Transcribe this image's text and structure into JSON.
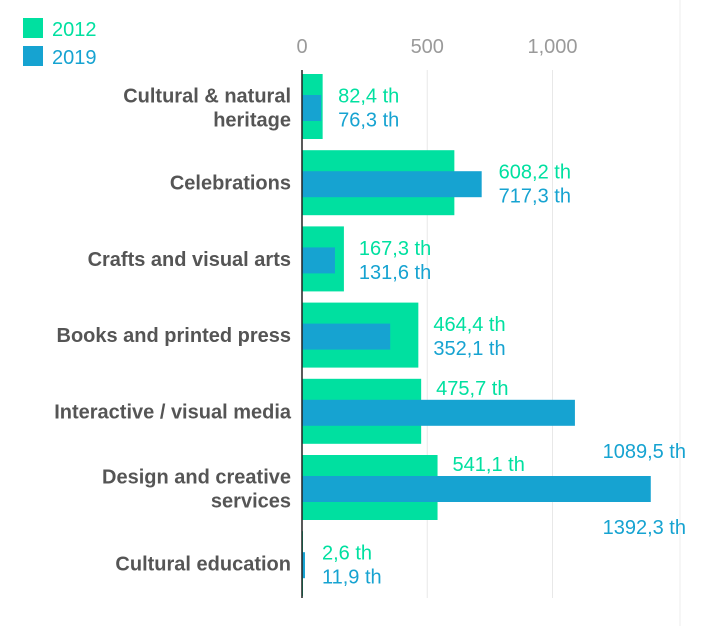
{
  "chart_data": {
    "type": "bar",
    "orientation": "horizontal",
    "categories": [
      [
        "Cultural & natural",
        "heritage"
      ],
      [
        "Celebrations"
      ],
      [
        "Crafts and visual arts"
      ],
      [
        "Books and printed press"
      ],
      [
        "Interactive / visual media"
      ],
      [
        "Design and creative",
        "services"
      ],
      [
        "Cultural education"
      ]
    ],
    "series": [
      {
        "name": "2012",
        "color": "#00e0a0",
        "values": [
          82.4,
          608.2,
          167.3,
          464.4,
          475.7,
          541.1,
          2.6
        ],
        "labels": [
          "82,4 th",
          "608,2 th",
          "167,3 th",
          "464,4 th",
          "475,7 th",
          "541,1 th",
          "2,6 th"
        ]
      },
      {
        "name": "2019",
        "color": "#16a3d1",
        "values": [
          76.3,
          717.3,
          131.6,
          352.1,
          1089.5,
          1392.3,
          11.9
        ],
        "labels": [
          "76,3 th",
          "717,3 th",
          "131,6 th",
          "352,1 th",
          "1089,5 th",
          "1392,3 th",
          "11,9 th"
        ]
      }
    ],
    "xticks": [
      {
        "value": 0,
        "label": "0"
      },
      {
        "value": 500,
        "label": "500"
      },
      {
        "value": 1000,
        "label": "1,000"
      }
    ],
    "xlim": [
      0,
      1400
    ],
    "grid": true,
    "legend": "top-left",
    "title": "",
    "xlabel": "",
    "ylabel": ""
  }
}
